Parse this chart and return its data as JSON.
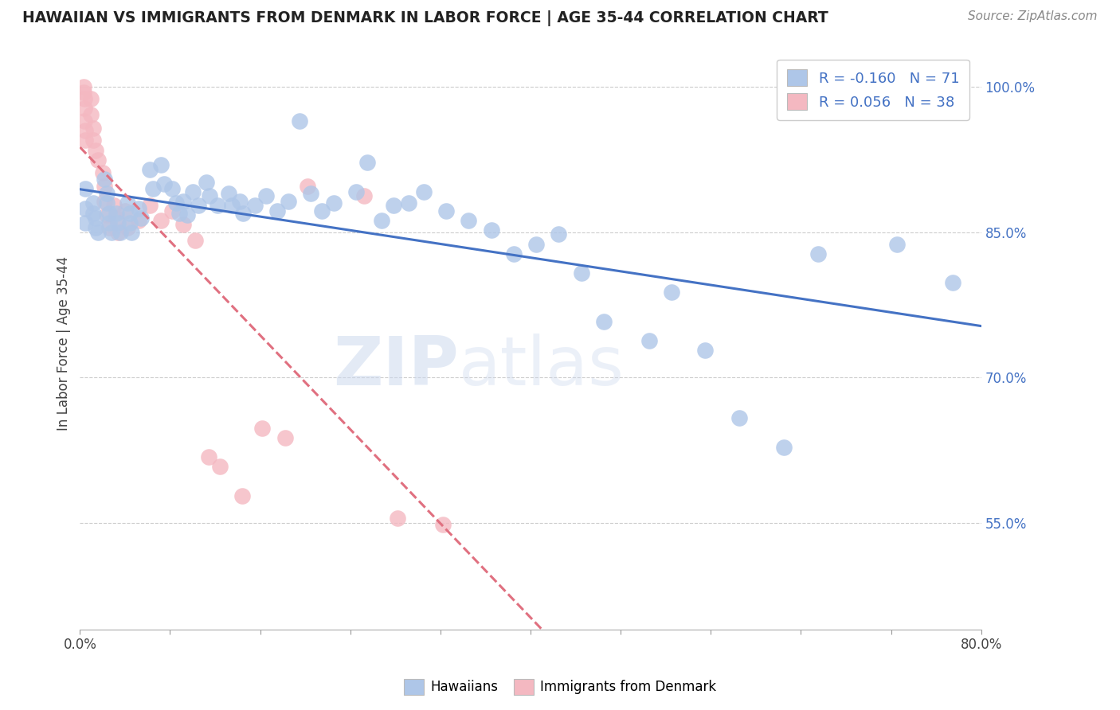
{
  "title": "HAWAIIAN VS IMMIGRANTS FROM DENMARK IN LABOR FORCE | AGE 35-44 CORRELATION CHART",
  "source": "Source: ZipAtlas.com",
  "ylabel": "In Labor Force | Age 35-44",
  "xmin": 0.0,
  "xmax": 0.8,
  "ymin": 0.44,
  "ymax": 1.03,
  "ytick_labels_right": [
    "100.0%",
    "85.0%",
    "70.0%",
    "55.0%"
  ],
  "ytick_vals_right": [
    1.0,
    0.85,
    0.7,
    0.55
  ],
  "R_hawaiian": -0.16,
  "N_hawaiian": 71,
  "R_denmark": 0.056,
  "N_denmark": 38,
  "hawaiian_color": "#aec6e8",
  "denmark_color": "#f4b8c1",
  "hawaiian_line_color": "#4472c4",
  "denmark_line_color": "#e07080",
  "hawaiian_x": [
    0.005,
    0.005,
    0.005,
    0.012,
    0.012,
    0.014,
    0.014,
    0.016,
    0.022,
    0.024,
    0.024,
    0.026,
    0.026,
    0.028,
    0.032,
    0.034,
    0.036,
    0.042,
    0.044,
    0.044,
    0.046,
    0.052,
    0.054,
    0.062,
    0.065,
    0.072,
    0.075,
    0.082,
    0.085,
    0.088,
    0.092,
    0.095,
    0.1,
    0.105,
    0.112,
    0.115,
    0.122,
    0.132,
    0.135,
    0.142,
    0.145,
    0.155,
    0.165,
    0.175,
    0.185,
    0.195,
    0.205,
    0.215,
    0.225,
    0.245,
    0.255,
    0.268,
    0.278,
    0.292,
    0.305,
    0.325,
    0.345,
    0.365,
    0.385,
    0.405,
    0.425,
    0.445,
    0.465,
    0.505,
    0.525,
    0.555,
    0.585,
    0.625,
    0.655,
    0.725,
    0.775
  ],
  "hawaiian_y": [
    0.895,
    0.875,
    0.86,
    0.88,
    0.87,
    0.865,
    0.855,
    0.85,
    0.905,
    0.89,
    0.88,
    0.87,
    0.86,
    0.85,
    0.87,
    0.86,
    0.85,
    0.88,
    0.87,
    0.86,
    0.85,
    0.875,
    0.865,
    0.915,
    0.895,
    0.92,
    0.9,
    0.895,
    0.88,
    0.87,
    0.882,
    0.868,
    0.892,
    0.878,
    0.902,
    0.888,
    0.878,
    0.89,
    0.878,
    0.882,
    0.87,
    0.878,
    0.888,
    0.872,
    0.882,
    0.965,
    0.89,
    0.872,
    0.88,
    0.892,
    0.922,
    0.862,
    0.878,
    0.88,
    0.892,
    0.872,
    0.862,
    0.852,
    0.828,
    0.838,
    0.848,
    0.808,
    0.758,
    0.738,
    0.788,
    0.728,
    0.658,
    0.628,
    0.828,
    0.838,
    0.798
  ],
  "denmark_x": [
    0.003,
    0.003,
    0.004,
    0.004,
    0.004,
    0.005,
    0.005,
    0.01,
    0.01,
    0.012,
    0.012,
    0.014,
    0.016,
    0.02,
    0.022,
    0.022,
    0.024,
    0.026,
    0.03,
    0.032,
    0.034,
    0.04,
    0.042,
    0.052,
    0.062,
    0.072,
    0.082,
    0.092,
    0.102,
    0.114,
    0.124,
    0.144,
    0.162,
    0.182,
    0.202,
    0.252,
    0.282,
    0.322
  ],
  "denmark_y": [
    1.0,
    0.995,
    0.988,
    0.978,
    0.965,
    0.955,
    0.945,
    0.988,
    0.972,
    0.958,
    0.945,
    0.935,
    0.925,
    0.912,
    0.898,
    0.882,
    0.868,
    0.855,
    0.878,
    0.865,
    0.85,
    0.872,
    0.855,
    0.862,
    0.878,
    0.862,
    0.872,
    0.858,
    0.842,
    0.618,
    0.608,
    0.578,
    0.648,
    0.638,
    0.898,
    0.888,
    0.555,
    0.548
  ]
}
